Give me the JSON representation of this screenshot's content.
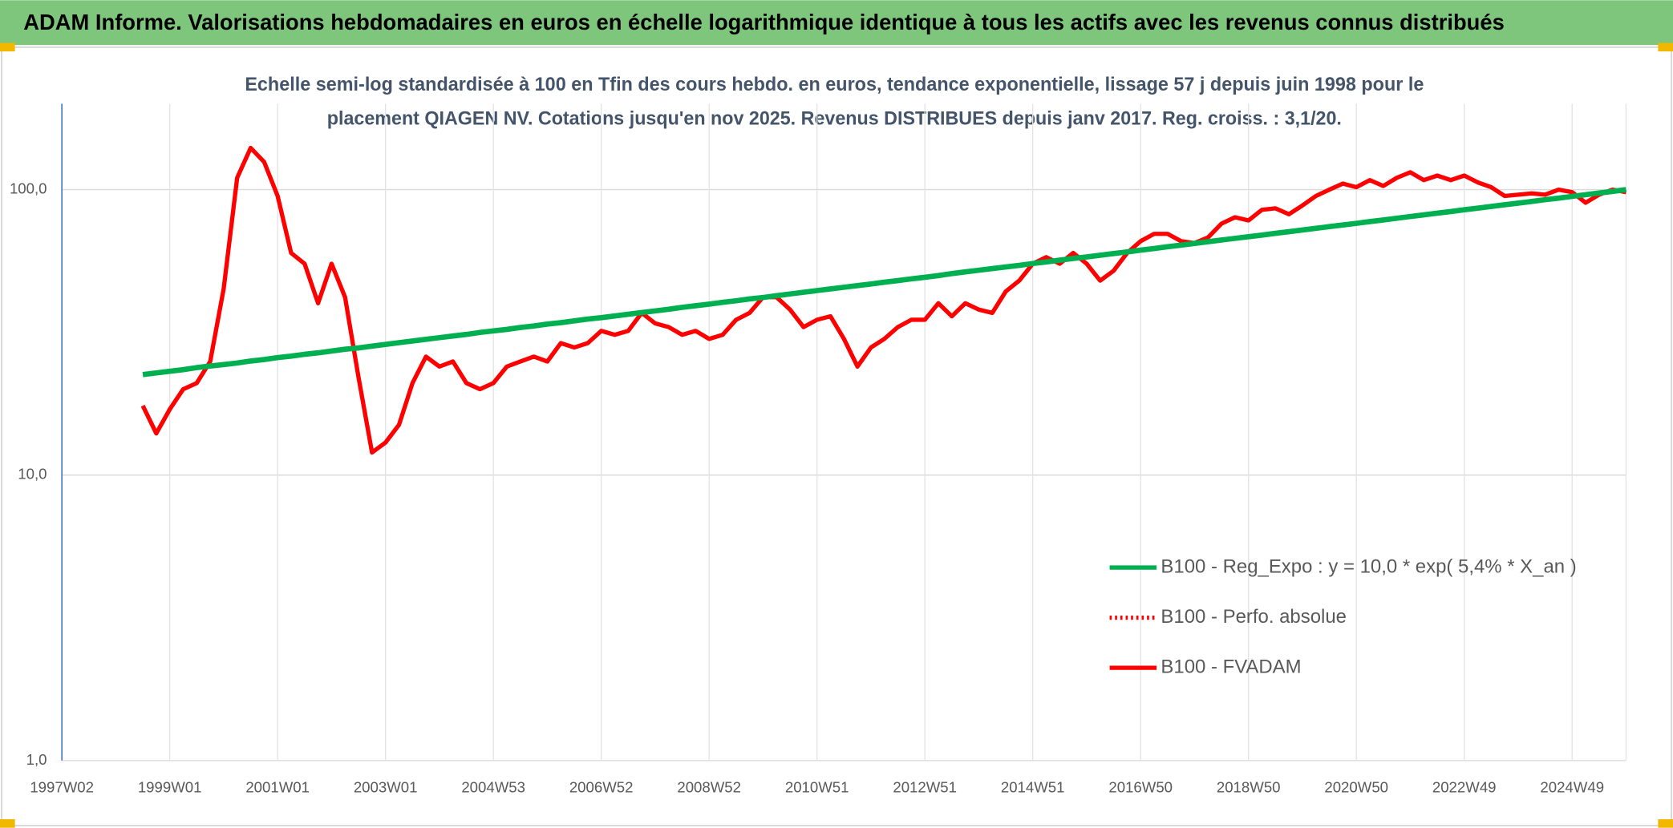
{
  "chart_data": {
    "type": "line",
    "title": "ADAM Informe. Valorisations hebdomadaires en euros en échelle logarithmique identique à tous les actifs avec les revenus connus distribués",
    "subtitle": [
      "Echelle semi-log standardisée à 100 en Tfin des cours hebdo. en euros, tendance exponentielle, lissage 57 j depuis juin 1998 pour le",
      "placement  QIAGEN NV. Cotations jusqu'en nov 2025. Revenus DISTRIBUES depuis janv 2017. Reg. croiss. : 3,1/20."
    ],
    "categories": [
      "1997W02",
      null,
      null,
      null,
      null,
      null,
      null,
      null,
      "1999W01",
      null,
      null,
      null,
      null,
      null,
      null,
      null,
      "2001W01",
      null,
      null,
      null,
      null,
      null,
      null,
      null,
      "2003W01",
      null,
      null,
      null,
      null,
      null,
      null,
      null,
      "2004W53",
      null,
      null,
      null,
      null,
      null,
      null,
      null,
      "2006W52",
      null,
      null,
      null,
      null,
      null,
      null,
      null,
      "2008W52",
      null,
      null,
      null,
      null,
      null,
      null,
      null,
      "2010W51",
      null,
      null,
      null,
      null,
      null,
      null,
      null,
      "2012W51",
      null,
      null,
      null,
      null,
      null,
      null,
      null,
      "2014W51",
      null,
      null,
      null,
      null,
      null,
      null,
      null,
      "2016W50",
      null,
      null,
      null,
      null,
      null,
      null,
      null,
      "2018W50",
      null,
      null,
      null,
      null,
      null,
      null,
      null,
      "2020W50",
      null,
      null,
      null,
      null,
      null,
      null,
      null,
      "2022W49",
      null,
      null,
      null,
      null,
      null,
      null,
      null,
      "2024W49",
      null,
      null,
      null,
      null
    ],
    "log_scale": true,
    "ylim": [
      1,
      200
    ],
    "yticks": [
      {
        "value": 1,
        "label": "1,0"
      },
      {
        "value": 10,
        "label": "10,0"
      },
      {
        "value": 100,
        "label": "100,0"
      }
    ],
    "grid": true,
    "legend": "right",
    "series": [
      {
        "name": "B100 - Reg_Expo : y = 10,0 * exp( 5,4% *  X_an )",
        "color": "#00b050",
        "dash": "solid",
        "values": [
          null,
          null,
          null,
          null,
          null,
          null,
          22.5,
          22.8,
          23.1,
          23.4,
          23.8,
          24.1,
          24.4,
          24.7,
          25.1,
          25.4,
          25.8,
          26.1,
          26.5,
          26.8,
          27.2,
          27.6,
          27.9,
          28.3,
          28.7,
          29.1,
          29.5,
          29.9,
          30.3,
          30.7,
          31.1,
          31.6,
          32.0,
          32.4,
          32.9,
          33.3,
          33.8,
          34.2,
          34.7,
          35.2,
          35.6,
          36.1,
          36.6,
          37.1,
          37.6,
          38.1,
          38.7,
          39.2,
          39.7,
          40.3,
          40.8,
          41.4,
          41.9,
          42.5,
          43.1,
          43.7,
          44.3,
          44.9,
          45.5,
          46.1,
          46.7,
          47.4,
          48.0,
          48.7,
          49.3,
          50.0,
          50.8,
          51.5,
          52.2,
          52.9,
          53.6,
          54.3,
          55.1,
          55.8,
          56.6,
          57.4,
          58.1,
          58.9,
          59.7,
          60.5,
          61.4,
          62.2,
          63.1,
          63.9,
          64.8,
          65.7,
          66.6,
          67.5,
          68.4,
          69.3,
          70.3,
          71.2,
          72.2,
          73.2,
          74.2,
          75.2,
          76.2,
          77.3,
          78.3,
          79.4,
          80.5,
          81.6,
          82.7,
          83.8,
          85.0,
          86.1,
          87.3,
          88.5,
          89.7,
          90.9,
          92.2,
          93.4,
          94.7,
          96.0,
          97.3,
          98.6,
          100.0
        ]
      },
      {
        "name": "B100 - Perfo. absolue",
        "color": "#ff0000",
        "dash": "dotted"
      },
      {
        "name": "B100 - FVADAM",
        "color": "#ff0000",
        "dash": "solid",
        "values": [
          null,
          null,
          null,
          null,
          null,
          null,
          17.5,
          14,
          17,
          20,
          21,
          25,
          45,
          110,
          140,
          125,
          95,
          60,
          55,
          40,
          55,
          42,
          22,
          12,
          13,
          15,
          21,
          26,
          24,
          25,
          21,
          20,
          21,
          24,
          25,
          26,
          25,
          29,
          28,
          29,
          32,
          31,
          32,
          37,
          34,
          33,
          31,
          32,
          30,
          31,
          35,
          37,
          42,
          42,
          38,
          33,
          35,
          36,
          30,
          24,
          28,
          30,
          33,
          35,
          35,
          40,
          36,
          40,
          38,
          37,
          44,
          48,
          55,
          58,
          55,
          60,
          55,
          48,
          52,
          60,
          66,
          70,
          70,
          66,
          65,
          68,
          76,
          80,
          78,
          85,
          86,
          82,
          88,
          95,
          100,
          105,
          102,
          108,
          103,
          110,
          115,
          108,
          112,
          108,
          112,
          106,
          102,
          95,
          96,
          97,
          96,
          100,
          98,
          90,
          96,
          100,
          98
        ]
      }
    ]
  }
}
